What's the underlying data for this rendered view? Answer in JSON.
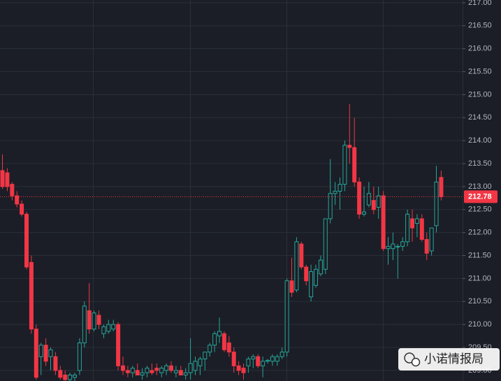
{
  "chart_data": {
    "type": "candlestick",
    "ylim": [
      208.77,
      217.06
    ],
    "yticks": [
      {
        "value": 209,
        "label": "209.00"
      },
      {
        "value": 209.5,
        "label": "209.50"
      },
      {
        "value": 210,
        "label": "210.00"
      },
      {
        "value": 210.5,
        "label": "210.50"
      },
      {
        "value": 211,
        "label": "211.00"
      },
      {
        "value": 211.5,
        "label": "211.50"
      },
      {
        "value": 212,
        "label": "212.00"
      },
      {
        "value": 212.5,
        "label": "212.50"
      },
      {
        "value": 213,
        "label": "213.00"
      },
      {
        "value": 213.5,
        "label": "213.50"
      },
      {
        "value": 214,
        "label": "214.00"
      },
      {
        "value": 214.5,
        "label": "214.50"
      },
      {
        "value": 215,
        "label": "215.00"
      },
      {
        "value": 215.5,
        "label": "215.50"
      },
      {
        "value": 216,
        "label": "216.00"
      },
      {
        "value": 216.5,
        "label": "216.50"
      },
      {
        "value": 217,
        "label": "217.00"
      }
    ],
    "grid": true,
    "up_color": "#26a69a",
    "down_color": "#f23645",
    "last_price": {
      "value": 212.78,
      "label": "212.78"
    },
    "watermark": "小诺情报局",
    "open": [
      213.35,
      213.3,
      213.05,
      212.8,
      212.62,
      212.4,
      211.35,
      209.9,
      209.3,
      209.55,
      209.3,
      209.3,
      209.0,
      208.9,
      208.8,
      208.85,
      209.0,
      209.6,
      210.3,
      209.9,
      210.2,
      209.8,
      209.85,
      209.9,
      210.0,
      209.1,
      209.0,
      208.95,
      209.0,
      208.9,
      208.95,
      209.0,
      209.05,
      208.95,
      209.0,
      209.1,
      208.95,
      209.0,
      208.9,
      208.95,
      209.0,
      209.1,
      209.25,
      209.4,
      209.55,
      209.75,
      209.8,
      209.6,
      209.4,
      209.1,
      209.05,
      209.1,
      209.25,
      209.3,
      209.1,
      209.2,
      209.2,
      209.2,
      209.3,
      209.4,
      210.95,
      210.75,
      211.75,
      211.25,
      210.6,
      210.85,
      211.1,
      211.2,
      212.3,
      212.85,
      212.9,
      213.05,
      213.9,
      213.85,
      213.1,
      212.4,
      212.6,
      212.7,
      212.55,
      212.8,
      211.65,
      211.65,
      211.7,
      211.7,
      211.8,
      212.3,
      212.2,
      212.3,
      211.85,
      211.6,
      212.15,
      213.2
    ],
    "high": [
      213.7,
      213.4,
      213.1,
      212.9,
      212.7,
      212.45,
      211.5,
      210.0,
      209.6,
      209.7,
      209.5,
      209.4,
      209.1,
      209.0,
      208.95,
      208.95,
      209.7,
      210.5,
      210.9,
      210.3,
      210.3,
      210.0,
      210.1,
      210.1,
      210.05,
      209.3,
      209.1,
      209.1,
      209.15,
      209.05,
      209.1,
      209.15,
      209.15,
      209.1,
      209.15,
      209.2,
      209.1,
      209.1,
      209.05,
      209.7,
      209.3,
      209.3,
      209.4,
      209.6,
      209.85,
      210.15,
      209.85,
      209.75,
      209.5,
      209.2,
      209.15,
      209.3,
      209.35,
      209.35,
      209.3,
      209.25,
      209.35,
      209.35,
      209.5,
      211.0,
      211.45,
      211.9,
      211.8,
      211.3,
      211.3,
      211.3,
      211.5,
      212.3,
      213.6,
      213.1,
      213.2,
      214.0,
      214.8,
      214.5,
      213.2,
      213.0,
      213.1,
      213.0,
      213.0,
      212.9,
      211.9,
      212.0,
      211.75,
      211.9,
      212.5,
      212.5,
      212.4,
      212.4,
      212.0,
      212.1,
      213.45,
      213.35
    ],
    "low": [
      212.95,
      212.9,
      212.7,
      212.55,
      212.35,
      211.2,
      209.8,
      208.8,
      208.9,
      209.1,
      209.0,
      208.9,
      208.8,
      208.7,
      208.7,
      208.7,
      208.9,
      209.5,
      209.8,
      209.85,
      209.9,
      209.7,
      209.8,
      209.85,
      209.0,
      208.9,
      208.85,
      208.85,
      208.9,
      208.8,
      208.85,
      208.9,
      208.9,
      208.85,
      208.9,
      208.95,
      208.85,
      208.9,
      208.8,
      208.8,
      208.9,
      208.9,
      209.0,
      209.3,
      209.4,
      209.6,
      209.4,
      209.3,
      208.95,
      208.9,
      208.8,
      208.95,
      209.05,
      209.05,
      208.85,
      209.15,
      209.1,
      209.1,
      209.25,
      209.3,
      210.6,
      210.7,
      211.2,
      210.85,
      210.5,
      210.8,
      211.05,
      211.1,
      212.2,
      212.6,
      212.5,
      212.9,
      213.5,
      213.0,
      212.3,
      212.35,
      212.55,
      212.4,
      212.3,
      211.6,
      211.3,
      211.4,
      211.0,
      211.6,
      211.7,
      211.8,
      211.9,
      211.8,
      211.4,
      211.5,
      212.0,
      212.7
    ],
    "close": [
      213.0,
      213.0,
      212.8,
      212.62,
      212.4,
      211.25,
      209.9,
      208.85,
      209.55,
      209.2,
      209.45,
      209.0,
      208.85,
      208.8,
      208.9,
      208.9,
      209.6,
      210.4,
      209.9,
      210.25,
      210.0,
      209.95,
      210.0,
      210.0,
      209.1,
      209.0,
      208.95,
      209.05,
      208.9,
      208.95,
      209.05,
      208.95,
      209.0,
      209.05,
      209.1,
      209.0,
      209.0,
      208.9,
      208.95,
      209.15,
      209.2,
      209.25,
      209.4,
      209.55,
      209.8,
      209.85,
      209.45,
      209.4,
      209.1,
      209.0,
      208.95,
      209.25,
      209.3,
      209.1,
      209.2,
      209.22,
      209.3,
      209.3,
      209.4,
      210.95,
      210.7,
      211.8,
      211.25,
      210.95,
      211.15,
      211.2,
      211.4,
      212.3,
      212.85,
      212.9,
      213.05,
      213.9,
      213.85,
      213.1,
      212.4,
      212.45,
      212.85,
      212.5,
      212.8,
      211.65,
      211.7,
      211.75,
      211.7,
      211.8,
      212.4,
      212.1,
      212.3,
      211.85,
      211.55,
      212.1,
      213.1,
      212.78
    ]
  }
}
